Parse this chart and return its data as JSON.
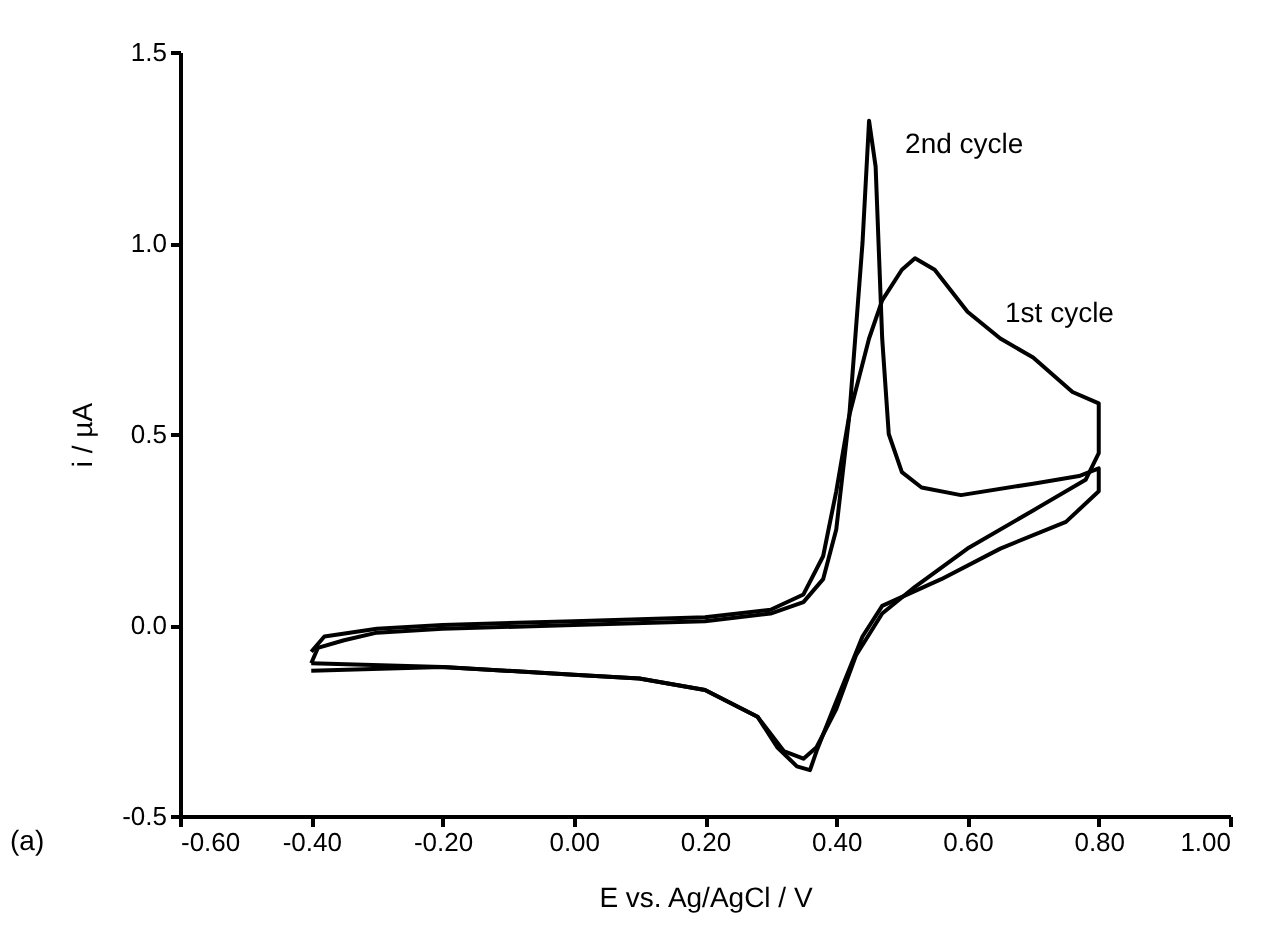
{
  "chart_data": {
    "type": "line",
    "xlabel": "E vs. Ag/AgCl / V",
    "ylabel": "i / µA",
    "series": [
      {
        "name": "1st cycle",
        "color": "#000000",
        "x": [
          -0.4,
          -0.38,
          -0.3,
          -0.2,
          0.0,
          0.2,
          0.3,
          0.35,
          0.38,
          0.4,
          0.42,
          0.45,
          0.47,
          0.5,
          0.52,
          0.55,
          0.6,
          0.65,
          0.7,
          0.76,
          0.8,
          0.8,
          0.78,
          0.7,
          0.6,
          0.52,
          0.47,
          0.43,
          0.4,
          0.37,
          0.35,
          0.32,
          0.28,
          0.2,
          0.1,
          0.0,
          -0.2,
          -0.4
        ],
        "values": [
          -0.07,
          -0.03,
          -0.01,
          0.0,
          0.01,
          0.02,
          0.04,
          0.08,
          0.18,
          0.35,
          0.55,
          0.75,
          0.85,
          0.93,
          0.96,
          0.93,
          0.82,
          0.75,
          0.7,
          0.61,
          0.58,
          0.45,
          0.38,
          0.3,
          0.2,
          0.1,
          0.03,
          -0.08,
          -0.22,
          -0.32,
          -0.35,
          -0.33,
          -0.24,
          -0.17,
          -0.14,
          -0.13,
          -0.11,
          -0.1
        ]
      },
      {
        "name": "2nd cycle",
        "color": "#000000",
        "x": [
          -0.4,
          -0.39,
          -0.35,
          -0.3,
          -0.2,
          0.0,
          0.2,
          0.3,
          0.35,
          0.38,
          0.4,
          0.42,
          0.44,
          0.45,
          0.46,
          0.47,
          0.48,
          0.5,
          0.53,
          0.59,
          0.7,
          0.77,
          0.8,
          0.8,
          0.75,
          0.65,
          0.56,
          0.47,
          0.44,
          0.4,
          0.37,
          0.36,
          0.34,
          0.31,
          0.28,
          0.2,
          0.1,
          0.0,
          -0.2,
          -0.4
        ],
        "values": [
          -0.1,
          -0.06,
          -0.04,
          -0.02,
          -0.01,
          0.0,
          0.01,
          0.03,
          0.06,
          0.12,
          0.25,
          0.55,
          1.0,
          1.32,
          1.2,
          0.75,
          0.5,
          0.4,
          0.36,
          0.34,
          0.37,
          0.39,
          0.41,
          0.35,
          0.27,
          0.2,
          0.12,
          0.05,
          -0.03,
          -0.2,
          -0.33,
          -0.38,
          -0.37,
          -0.32,
          -0.24,
          -0.17,
          -0.14,
          -0.13,
          -0.11,
          -0.12
        ]
      }
    ],
    "xlim": [
      -0.6,
      1.0
    ],
    "xticks": [
      {
        "value": -0.6,
        "label": "-0.60"
      },
      {
        "value": -0.4,
        "label": "-0.40"
      },
      {
        "value": -0.2,
        "label": "-0.20"
      },
      {
        "value": 0,
        "label": "0.00"
      },
      {
        "value": 0.2,
        "label": "0.20"
      },
      {
        "value": 0.4,
        "label": "0.40"
      },
      {
        "value": 0.6,
        "label": "0.60"
      },
      {
        "value": 0.8,
        "label": "0.80"
      },
      {
        "value": 1.0,
        "label": "1.00"
      }
    ],
    "ylim": [
      -0.5,
      1.5
    ],
    "yticks": [
      {
        "value": -0.5,
        "label": "-0.5"
      },
      {
        "value": 0,
        "label": "0.0"
      },
      {
        "value": 0.5,
        "label": "0.5"
      },
      {
        "value": 1.0,
        "label": "1.0"
      },
      {
        "value": 1.5,
        "label": "1.5"
      }
    ],
    "grid": false,
    "annotations": [
      "(a)"
    ]
  }
}
